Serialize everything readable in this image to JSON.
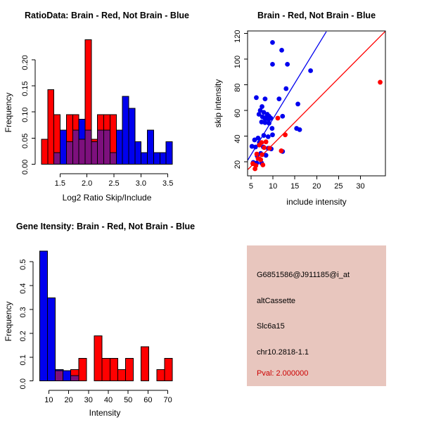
{
  "colors": {
    "brain_red": "#ff0000",
    "not_brain_blue": "#0000ee",
    "overlap_purple": "#7d107d",
    "axis_black": "#000000",
    "pval_red": "#cc0000",
    "info_bg": "#e8c6be"
  },
  "chart_data": [
    {
      "type": "bar",
      "panel": "top-left",
      "title": "RatioData: Brain - Red, Not Brain - Blue",
      "xlabel": "Log2 Ratio Skip/Include",
      "ylabel": "Frequency",
      "legend_note": "Brain = red bars, Not Brain = blue bars, overlap = purple",
      "xlim": [
        1.157,
        3.582
      ],
      "ylim": [
        0,
        0.248
      ],
      "bin_width": 0.1155,
      "x_ticks": [
        {
          "v": 1.5,
          "label": "1.5"
        },
        {
          "v": 2.0,
          "label": "2.0"
        },
        {
          "v": 2.5,
          "label": "2.5"
        },
        {
          "v": 3.0,
          "label": "3.0"
        },
        {
          "v": 3.5,
          "label": "3.5"
        }
      ],
      "y_ticks": [
        {
          "v": 0.0,
          "label": "0.00"
        },
        {
          "v": 0.05,
          "label": "0.05"
        },
        {
          "v": 0.1,
          "label": "0.10"
        },
        {
          "v": 0.15,
          "label": "0.15"
        },
        {
          "v": 0.2,
          "label": "0.20"
        }
      ],
      "bins": [
        {
          "x": 1.157,
          "red": 0.048,
          "blue": 0
        },
        {
          "x": 1.272,
          "red": 0.143,
          "blue": 0
        },
        {
          "x": 1.388,
          "red": 0.095,
          "blue": 0.022
        },
        {
          "x": 1.503,
          "red": 0,
          "blue": 0.065
        },
        {
          "x": 1.619,
          "red": 0.095,
          "blue": 0.043
        },
        {
          "x": 1.734,
          "red": 0.095,
          "blue": 0.065
        },
        {
          "x": 1.85,
          "red": 0.048,
          "blue": 0.086
        },
        {
          "x": 1.965,
          "red": 0.238,
          "blue": 0.065
        },
        {
          "x": 2.081,
          "red": 0.048,
          "blue": 0.043
        },
        {
          "x": 2.196,
          "red": 0.095,
          "blue": 0.065
        },
        {
          "x": 2.312,
          "red": 0.095,
          "blue": 0.065
        },
        {
          "x": 2.427,
          "red": 0.095,
          "blue": 0.022
        },
        {
          "x": 2.543,
          "red": 0,
          "blue": 0.065
        },
        {
          "x": 2.658,
          "red": 0,
          "blue": 0.13
        },
        {
          "x": 2.774,
          "red": 0,
          "blue": 0.107
        },
        {
          "x": 2.889,
          "red": 0,
          "blue": 0.043
        },
        {
          "x": 3.005,
          "red": 0,
          "blue": 0.022
        },
        {
          "x": 3.12,
          "red": 0,
          "blue": 0.065
        },
        {
          "x": 3.236,
          "red": 0,
          "blue": 0.022
        },
        {
          "x": 3.351,
          "red": 0,
          "blue": 0.022
        },
        {
          "x": 3.467,
          "red": 0,
          "blue": 0.043
        }
      ]
    },
    {
      "type": "scatter",
      "panel": "top-right",
      "title": "Brain - Red, Not Brain - Blue",
      "xlabel": "include intensity",
      "ylabel": "skip intensity",
      "xlim": [
        4.2,
        35.7
      ],
      "ylim": [
        9,
        122
      ],
      "x_ticks": [
        {
          "v": 5,
          "label": "5"
        },
        {
          "v": 10,
          "label": "10"
        },
        {
          "v": 15,
          "label": "15"
        },
        {
          "v": 20,
          "label": "20"
        },
        {
          "v": 25,
          "label": "25"
        },
        {
          "v": 30,
          "label": "30"
        }
      ],
      "y_ticks": [
        {
          "v": 20,
          "label": "20"
        },
        {
          "v": 40,
          "label": "40"
        },
        {
          "v": 60,
          "label": "60"
        },
        {
          "v": 80,
          "label": "80"
        },
        {
          "v": 100,
          "label": "100"
        },
        {
          "v": 120,
          "label": "120"
        }
      ],
      "series": [
        {
          "name": "Not Brain",
          "color": "not_brain_blue",
          "points": [
            [
              9.9,
              113
            ],
            [
              12,
              107
            ],
            [
              9.9,
              96
            ],
            [
              13.3,
              96
            ],
            [
              18.6,
              91
            ],
            [
              13,
              77
            ],
            [
              6.2,
              70
            ],
            [
              8.2,
              69
            ],
            [
              11.4,
              69
            ],
            [
              15.7,
              65
            ],
            [
              7.5,
              63
            ],
            [
              7.1,
              60
            ],
            [
              7.9,
              58.5
            ],
            [
              6.8,
              57
            ],
            [
              8.7,
              57
            ],
            [
              9.1,
              55.5
            ],
            [
              12.2,
              55.5
            ],
            [
              7.6,
              55
            ],
            [
              8.4,
              54.5
            ],
            [
              9.5,
              54
            ],
            [
              8.2,
              53.5
            ],
            [
              9,
              53
            ],
            [
              7.4,
              51
            ],
            [
              8.2,
              50.5
            ],
            [
              9.1,
              50
            ],
            [
              9.8,
              46
            ],
            [
              15.4,
              46
            ],
            [
              16.1,
              45
            ],
            [
              9.9,
              41
            ],
            [
              7.9,
              40.5
            ],
            [
              8.9,
              39.5
            ],
            [
              6.6,
              38.5
            ],
            [
              5.8,
              37
            ],
            [
              6.9,
              35
            ],
            [
              5.2,
              32
            ],
            [
              6,
              31.5
            ],
            [
              7.8,
              31.5
            ],
            [
              8.9,
              30.5
            ],
            [
              9.6,
              30
            ],
            [
              12.2,
              28
            ],
            [
              7.2,
              26.5
            ],
            [
              8.4,
              25
            ],
            [
              6.4,
              24.5
            ],
            [
              5.5,
              19.5
            ],
            [
              6.3,
              19
            ],
            [
              7.4,
              19
            ]
          ]
        },
        {
          "name": "Brain",
          "color": "brain_red",
          "points": [
            [
              34.5,
              82
            ],
            [
              11.1,
              54
            ],
            [
              12.8,
              41
            ],
            [
              8.4,
              35.5
            ],
            [
              7.4,
              35
            ],
            [
              6.9,
              33
            ],
            [
              9.2,
              30.5
            ],
            [
              8,
              31
            ],
            [
              11.9,
              28.5
            ],
            [
              6.3,
              26
            ],
            [
              7.5,
              25.5
            ],
            [
              6.6,
              22.5
            ],
            [
              7.2,
              21.5
            ],
            [
              5.4,
              18.5
            ],
            [
              7.7,
              17.5
            ],
            [
              6.1,
              17
            ],
            [
              5.9,
              14.5
            ]
          ]
        }
      ],
      "lines": [
        {
          "name": "not-brain-fit",
          "color": "not_brain_blue",
          "x1": 4.2,
          "y1": 21,
          "x2": 22.2,
          "y2": 121.5
        },
        {
          "name": "brain-fit",
          "color": "brain_red",
          "x1": 4.3,
          "y1": 14,
          "x2": 35.6,
          "y2": 121.5
        }
      ]
    },
    {
      "type": "bar",
      "panel": "bottom-left",
      "title": "Gene Itensity: Brain - Red, Not Brain - Blue",
      "xlabel": "Intensity",
      "ylabel": "Frequency",
      "legend_note": "Brain = red bars, Not Brain = blue bars, overlap = purple",
      "xlim": [
        5.4,
        72.3
      ],
      "ylim": [
        0,
        0.567
      ],
      "bin_width": 3.935,
      "x_ticks": [
        {
          "v": 10,
          "label": "10"
        },
        {
          "v": 20,
          "label": "20"
        },
        {
          "v": 30,
          "label": "30"
        },
        {
          "v": 40,
          "label": "40"
        },
        {
          "v": 50,
          "label": "50"
        },
        {
          "v": 60,
          "label": "60"
        },
        {
          "v": 70,
          "label": "70"
        }
      ],
      "y_ticks": [
        {
          "v": 0.0,
          "label": "0.0"
        },
        {
          "v": 0.1,
          "label": "0.1"
        },
        {
          "v": 0.2,
          "label": "0.2"
        },
        {
          "v": 0.3,
          "label": "0.3"
        },
        {
          "v": 0.4,
          "label": "0.4"
        },
        {
          "v": 0.5,
          "label": "0.5"
        }
      ],
      "bins": [
        {
          "x": 5.4,
          "red": 0,
          "blue": 0.545
        },
        {
          "x": 9.3,
          "red": 0,
          "blue": 0.348
        },
        {
          "x": 13.3,
          "red": 0.043,
          "blue": 0.048
        },
        {
          "x": 17.2,
          "red": 0,
          "blue": 0.043
        },
        {
          "x": 21.1,
          "red": 0.048,
          "blue": 0.022
        },
        {
          "x": 25.1,
          "red": 0.095,
          "blue": 0
        },
        {
          "x": 29.0,
          "red": 0,
          "blue": 0
        },
        {
          "x": 32.9,
          "red": 0.19,
          "blue": 0
        },
        {
          "x": 36.9,
          "red": 0.095,
          "blue": 0
        },
        {
          "x": 40.8,
          "red": 0.095,
          "blue": 0
        },
        {
          "x": 44.7,
          "red": 0.048,
          "blue": 0
        },
        {
          "x": 48.7,
          "red": 0.095,
          "blue": 0
        },
        {
          "x": 52.6,
          "red": 0,
          "blue": 0
        },
        {
          "x": 56.5,
          "red": 0.143,
          "blue": 0
        },
        {
          "x": 60.5,
          "red": 0,
          "blue": 0
        },
        {
          "x": 64.4,
          "red": 0.048,
          "blue": 0
        },
        {
          "x": 68.3,
          "red": 0.095,
          "blue": 0
        }
      ]
    }
  ],
  "info_panel": {
    "probe_id": "G6851586@J911185@i_at",
    "event_type": "altCassette",
    "gene_name": "Slc6a15",
    "locus": "chr10.2818-1.1",
    "pval": "Pval: 2.000000"
  }
}
